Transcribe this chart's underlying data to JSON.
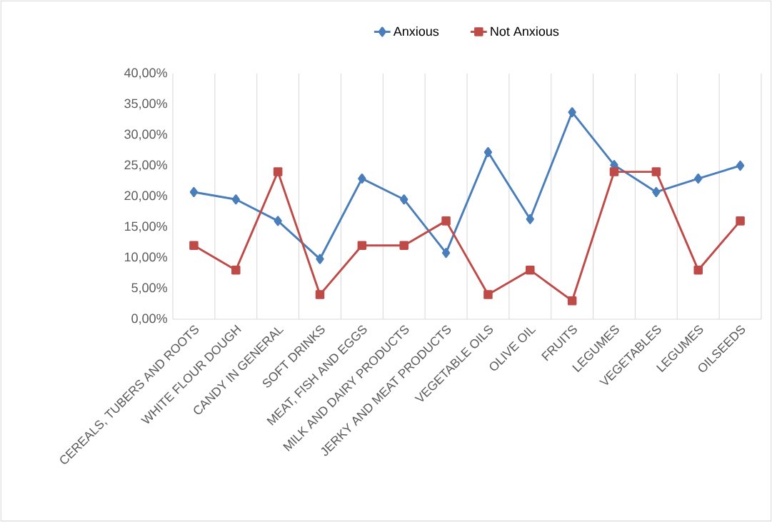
{
  "chart_data": {
    "type": "line",
    "categories": [
      "CEREALS, TUBERS AND ROOTS",
      "WHITE FLOUR DOUGH",
      "CANDY IN GENERAL",
      "SOFT DRINKS",
      "MEAT, FISH AND EGGS",
      "MILK AND DAIRY PRODUCTS",
      "JERKY AND MEAT PRODUCTS",
      "VEGETABLE OILS",
      "OLIVE OIL",
      "FRUITS",
      "LEGUMES",
      "VEGETABLES",
      "LEGUMES",
      "OILSEEDS"
    ],
    "series": [
      {
        "name": "Anxious",
        "color": "#4a7ebb",
        "marker": "diamond",
        "values": [
          20.7,
          19.5,
          16.0,
          9.8,
          22.9,
          19.5,
          10.8,
          27.2,
          16.3,
          33.7,
          25.1,
          20.7,
          22.9,
          25.0
        ]
      },
      {
        "name": "Not  Anxious",
        "color": "#be4b48",
        "marker": "square",
        "values": [
          12.0,
          8.0,
          24.0,
          4.0,
          12.0,
          12.0,
          16.0,
          4.0,
          8.0,
          3.0,
          24.0,
          24.0,
          8.0,
          16.0
        ]
      }
    ],
    "ylim": [
      0,
      40
    ],
    "yticks": [
      {
        "value": 0,
        "label": "0,00%"
      },
      {
        "value": 5,
        "label": "5,00%"
      },
      {
        "value": 10,
        "label": "10,00%"
      },
      {
        "value": 15,
        "label": "15,00%"
      },
      {
        "value": 20,
        "label": "20,00%"
      },
      {
        "value": 25,
        "label": "25,00%"
      },
      {
        "value": 30,
        "label": "30,00%"
      },
      {
        "value": 35,
        "label": "35,00%"
      },
      {
        "value": 40,
        "label": "40,00%"
      }
    ],
    "grid": "x",
    "legend": "top",
    "line_style": "solid"
  }
}
